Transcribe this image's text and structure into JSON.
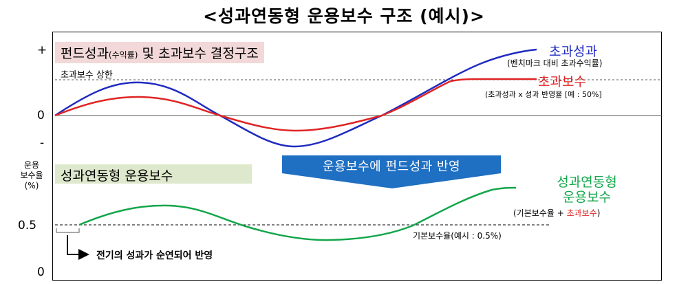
{
  "title": "<성과연동형 운용보수 구조 (예시)>",
  "top_panel": {
    "box_label_main": "펀드성과",
    "box_label_small": "(수익률)",
    "box_label_rest": " 및 초과보수 결정구조",
    "cap_label": "초과보수 상한",
    "ticks": {
      "plus": "+",
      "zero": "0",
      "minus": "-"
    },
    "excess_perf_label": "초과성과",
    "excess_perf_sub": "(벤치마크 대비 초과수익률)",
    "excess_fee_label": "초과보수",
    "excess_fee_sub": "(초과성과 x 성과 반영율 [예 : 50%]",
    "colors": {
      "excess_perf": "#1f2bbf",
      "excess_fee": "#e02424"
    }
  },
  "arrow_banner": {
    "label": "운용보수에 펀드성과 반영",
    "color": "#1f6fc2"
  },
  "bottom_panel": {
    "box_label": "성과연동형  운용보수",
    "y_axis_label": [
      "운용",
      "보수율",
      "(%)"
    ],
    "ticks": {
      "half": "0.5",
      "zero": "0"
    },
    "fee_label_line1": "성과연동형",
    "fee_label_line2": "운용보수",
    "fee_sub_prefix": "(기본보수율 + ",
    "fee_sub_highlight": "초과보수",
    "fee_sub_suffix": ")",
    "base_label": "기본보수율(예시 : 0.5%)",
    "lag_note": "전기의 성과가 순연되어 반영",
    "color": "#12a64a"
  }
}
